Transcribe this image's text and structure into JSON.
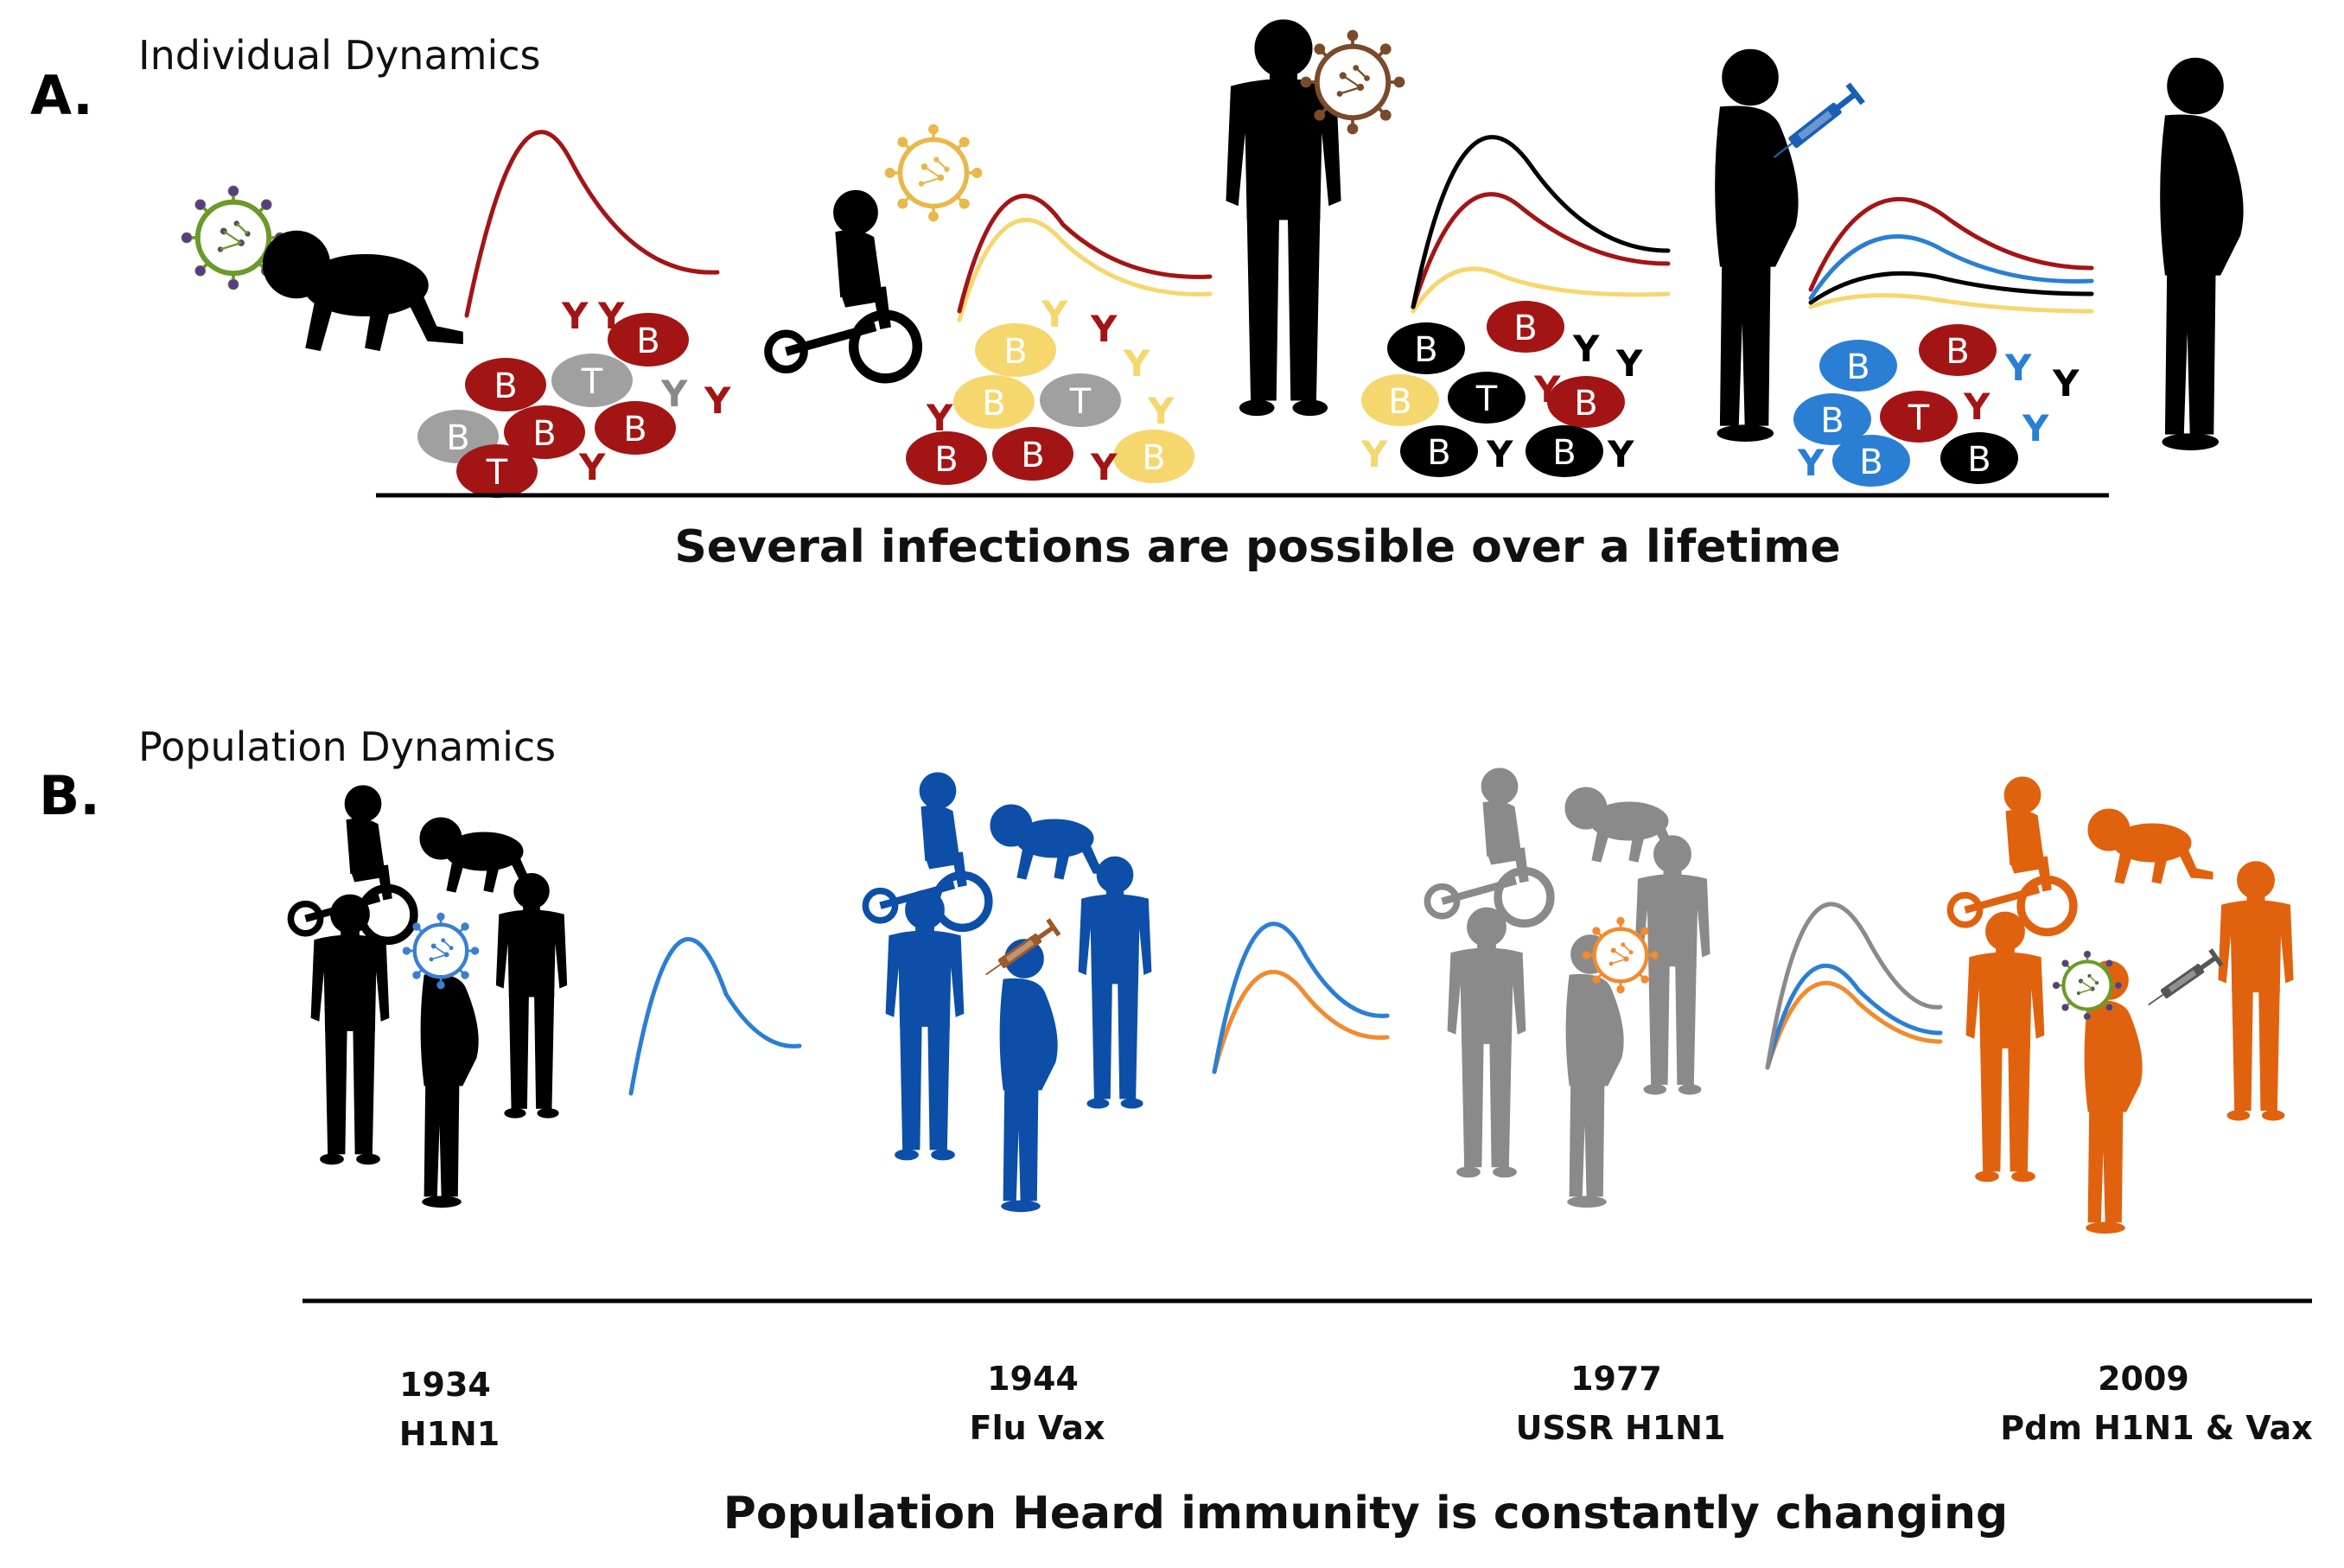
{
  "panel_a": {
    "letter": "A.",
    "title": "Individual Dynamics",
    "caption": "Several infections are possible over a lifetime"
  },
  "panel_b": {
    "letter": "B.",
    "title": "Population Dynamics",
    "caption": "Population Heard immunity is constantly changing",
    "events": [
      {
        "year": "1934",
        "label": "H1N1"
      },
      {
        "year": "1944",
        "label": "Flu Vax"
      },
      {
        "year": "1977",
        "label": "USSR H1N1"
      },
      {
        "year": "2009",
        "label": "Pdm H1N1 & Vax"
      }
    ]
  },
  "cell_labels": {
    "b_cell": "B",
    "t_cell": "T",
    "antibody": "Y"
  },
  "colors": {
    "dark_red": "#a31515",
    "yellow": "#f5d76e",
    "black": "#000000",
    "blue": "#2a7fd4",
    "grey": "#a0a0a0",
    "pop_blue": "#0d4fa8",
    "pop_grey": "#8a8a8a",
    "pop_orange": "#e0620f"
  },
  "icons": [
    "virus-icon",
    "syringe-icon",
    "baby-icon",
    "child-tricycle-icon",
    "adult-silhouette-icon",
    "elderly-silhouette-icon"
  ]
}
